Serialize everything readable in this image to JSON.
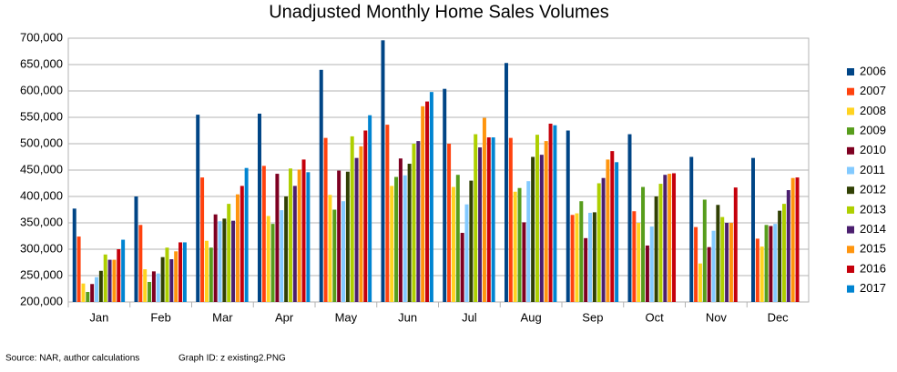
{
  "chart_data": {
    "type": "bar",
    "title": "Unadjusted Monthly Home Sales Volumes",
    "source": "Source: NAR, author calculations",
    "graph_id": "Graph ID: z existing2.PNG",
    "categories": [
      "Jan",
      "Feb",
      "Mar",
      "Apr",
      "May",
      "Jun",
      "Jul",
      "Aug",
      "Sep",
      "Oct",
      "Nov",
      "Dec"
    ],
    "ylim": [
      200000,
      700000
    ],
    "yticks": [
      {
        "value": 200000,
        "label": "200,000"
      },
      {
        "value": 250000,
        "label": "250,000"
      },
      {
        "value": 300000,
        "label": "300,000"
      },
      {
        "value": 350000,
        "label": "350,000"
      },
      {
        "value": 400000,
        "label": "400,000"
      },
      {
        "value": 450000,
        "label": "450,000"
      },
      {
        "value": 500000,
        "label": "500,000"
      },
      {
        "value": 550000,
        "label": "550,000"
      },
      {
        "value": 600000,
        "label": "600,000"
      },
      {
        "value": 650000,
        "label": "650,000"
      },
      {
        "value": 700000,
        "label": "700,000"
      }
    ],
    "grid": true,
    "legend": "right",
    "series": [
      {
        "name": "2006",
        "color": "#004586",
        "values": [
          377000,
          400000,
          555000,
          557000,
          640000,
          696000,
          604000,
          653000,
          525000,
          518000,
          475000,
          473000
        ]
      },
      {
        "name": "2007",
        "color": "#ff420e",
        "values": [
          324000,
          346000,
          436000,
          458000,
          511000,
          536000,
          500000,
          511000,
          365000,
          372000,
          342000,
          320000
        ]
      },
      {
        "name": "2008",
        "color": "#ffd320",
        "values": [
          235000,
          262000,
          316000,
          363000,
          403000,
          420000,
          418000,
          409000,
          368000,
          350000,
          273000,
          305000
        ]
      },
      {
        "name": "2009",
        "color": "#579d1c",
        "values": [
          219000,
          238000,
          303000,
          348000,
          375000,
          437000,
          441000,
          416000,
          391000,
          418000,
          394000,
          346000
        ]
      },
      {
        "name": "2010",
        "color": "#7e0021",
        "values": [
          234000,
          258000,
          366000,
          443000,
          449000,
          472000,
          331000,
          351000,
          321000,
          307000,
          304000,
          344000
        ]
      },
      {
        "name": "2011",
        "color": "#83caff",
        "values": [
          247000,
          254000,
          353000,
          374000,
          391000,
          440000,
          385000,
          429000,
          369000,
          343000,
          335000,
          348000
        ]
      },
      {
        "name": "2012",
        "color": "#314004",
        "values": [
          259000,
          285000,
          358000,
          400000,
          447000,
          462000,
          430000,
          475000,
          370000,
          400000,
          384000,
          373000
        ]
      },
      {
        "name": "2013",
        "color": "#aecf00",
        "values": [
          290000,
          303000,
          386000,
          453000,
          514000,
          500000,
          518000,
          517000,
          425000,
          424000,
          361000,
          386000
        ]
      },
      {
        "name": "2014",
        "color": "#4b1f6f",
        "values": [
          280000,
          281000,
          354000,
          420000,
          473000,
          505000,
          493000,
          479000,
          435000,
          441000,
          350000,
          412000
        ]
      },
      {
        "name": "2015",
        "color": "#ff950e",
        "values": [
          280000,
          296000,
          404000,
          451000,
          495000,
          571000,
          549000,
          505000,
          470000,
          443000,
          350000,
          435000
        ]
      },
      {
        "name": "2016",
        "color": "#c5000b",
        "values": [
          300000,
          313000,
          420000,
          470000,
          525000,
          580000,
          512000,
          538000,
          486000,
          444000,
          417000,
          436000
        ]
      },
      {
        "name": "2017",
        "color": "#0084d1",
        "values": [
          318000,
          313000,
          454000,
          446000,
          554000,
          598000,
          512000,
          535000,
          465000,
          null,
          null,
          null
        ]
      }
    ]
  }
}
